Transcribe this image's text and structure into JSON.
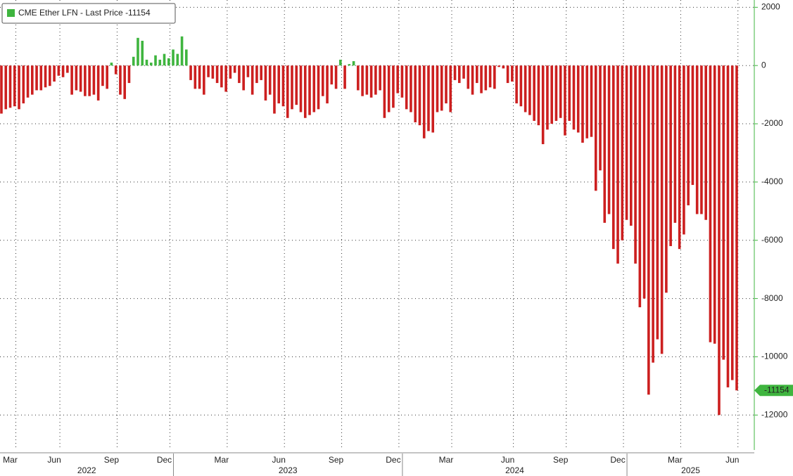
{
  "chart_data": {
    "type": "bar",
    "series": [
      {
        "name": "CME Ether LFN - Last Price",
        "color": "#cc1f1f",
        "positive_color": "#3fb53f",
        "values": [
          -1650,
          -1500,
          -1450,
          -1400,
          -1500,
          -1300,
          -1100,
          -1000,
          -850,
          -850,
          -750,
          -700,
          -550,
          -350,
          -400,
          -250,
          -1000,
          -850,
          -900,
          -1050,
          -1050,
          -1000,
          -1200,
          -700,
          -800,
          100,
          -300,
          -1000,
          -1150,
          -600,
          300,
          950,
          850,
          200,
          100,
          350,
          200,
          400,
          250,
          550,
          400,
          1000,
          550,
          -500,
          -800,
          -800,
          -1000,
          -400,
          -450,
          -600,
          -750,
          -900,
          -450,
          -250,
          -600,
          -850,
          -400,
          -1000,
          -600,
          -500,
          -1200,
          -1000,
          -1650,
          -1300,
          -1400,
          -1800,
          -1500,
          -1350,
          -1600,
          -1800,
          -1700,
          -1600,
          -1500,
          -1050,
          -1300,
          -650,
          -800,
          200,
          -800,
          50,
          150,
          -850,
          -1050,
          -1000,
          -1100,
          -1000,
          -850,
          -1800,
          -1600,
          -1450,
          -950,
          -1100,
          -1500,
          -1600,
          -1950,
          -2050,
          -2500,
          -2250,
          -2300,
          -1600,
          -1550,
          -1300,
          -1600,
          -500,
          -600,
          -450,
          -800,
          -1000,
          -600,
          -950,
          -850,
          -750,
          -800,
          -50,
          -100,
          -600,
          -550,
          -1300,
          -1400,
          -1600,
          -1700,
          -1900,
          -2050,
          -2700,
          -2200,
          -2000,
          -1900,
          -1800,
          -2400,
          -1900,
          -2200,
          -2300,
          -2650,
          -2500,
          -2450,
          -4300,
          -3600,
          -5400,
          -5100,
          -6300,
          -6800,
          -6000,
          -5300,
          -5500,
          -6800,
          -8300,
          -8000,
          -11300,
          -10200,
          -9400,
          -9900,
          -7800,
          -6200,
          -5400,
          -6300,
          -5800,
          -4800,
          -4100,
          -5100,
          -5100,
          -5300,
          -9500,
          -9550,
          -12000,
          -10100,
          -11050,
          -10800,
          -11154
        ]
      }
    ],
    "categories": [
      null,
      null,
      "Mar",
      null,
      null,
      null,
      null,
      null,
      null,
      null,
      null,
      null,
      "Jun",
      null,
      null,
      null,
      null,
      null,
      null,
      null,
      null,
      null,
      null,
      null,
      null,
      "Sep",
      null,
      null,
      null,
      null,
      null,
      null,
      null,
      null,
      null,
      null,
      null,
      "Dec",
      null,
      null,
      null,
      null,
      null,
      null,
      null,
      null,
      null,
      null,
      null,
      null,
      "Mar",
      null,
      null,
      null,
      null,
      null,
      null,
      null,
      null,
      null,
      null,
      null,
      null,
      "Jun",
      null,
      null,
      null,
      null,
      null,
      null,
      null,
      null,
      null,
      null,
      null,
      null,
      "Sep",
      null,
      null,
      null,
      null,
      null,
      null,
      null,
      null,
      null,
      null,
      null,
      null,
      "Dec",
      null,
      null,
      null,
      null,
      null,
      null,
      null,
      null,
      null,
      null,
      null,
      "Mar",
      null,
      null,
      null,
      null,
      null,
      null,
      null,
      null,
      null,
      null,
      null,
      null,
      null,
      "Jun",
      null,
      null,
      null,
      null,
      null,
      null,
      null,
      null,
      null,
      null,
      null,
      "Sep",
      null,
      null,
      null,
      null,
      null,
      null,
      null,
      null,
      null,
      null,
      null,
      null,
      "Dec",
      null,
      null,
      null,
      null,
      null,
      null,
      null,
      null,
      null,
      null,
      null,
      null,
      "Mar",
      null,
      null,
      null,
      null,
      null,
      null,
      null,
      null,
      null,
      null,
      null,
      null,
      "Jun",
      null
    ],
    "years": [
      "2022",
      "2023",
      "2024",
      "2025"
    ],
    "ylim": [
      -13200,
      2250
    ],
    "yticks": [
      2000,
      0,
      -2000,
      -4000,
      -6000,
      -8000,
      -10000,
      -12000
    ],
    "grid": true,
    "legend": "top-left",
    "y_axis_side": "right"
  }
}
